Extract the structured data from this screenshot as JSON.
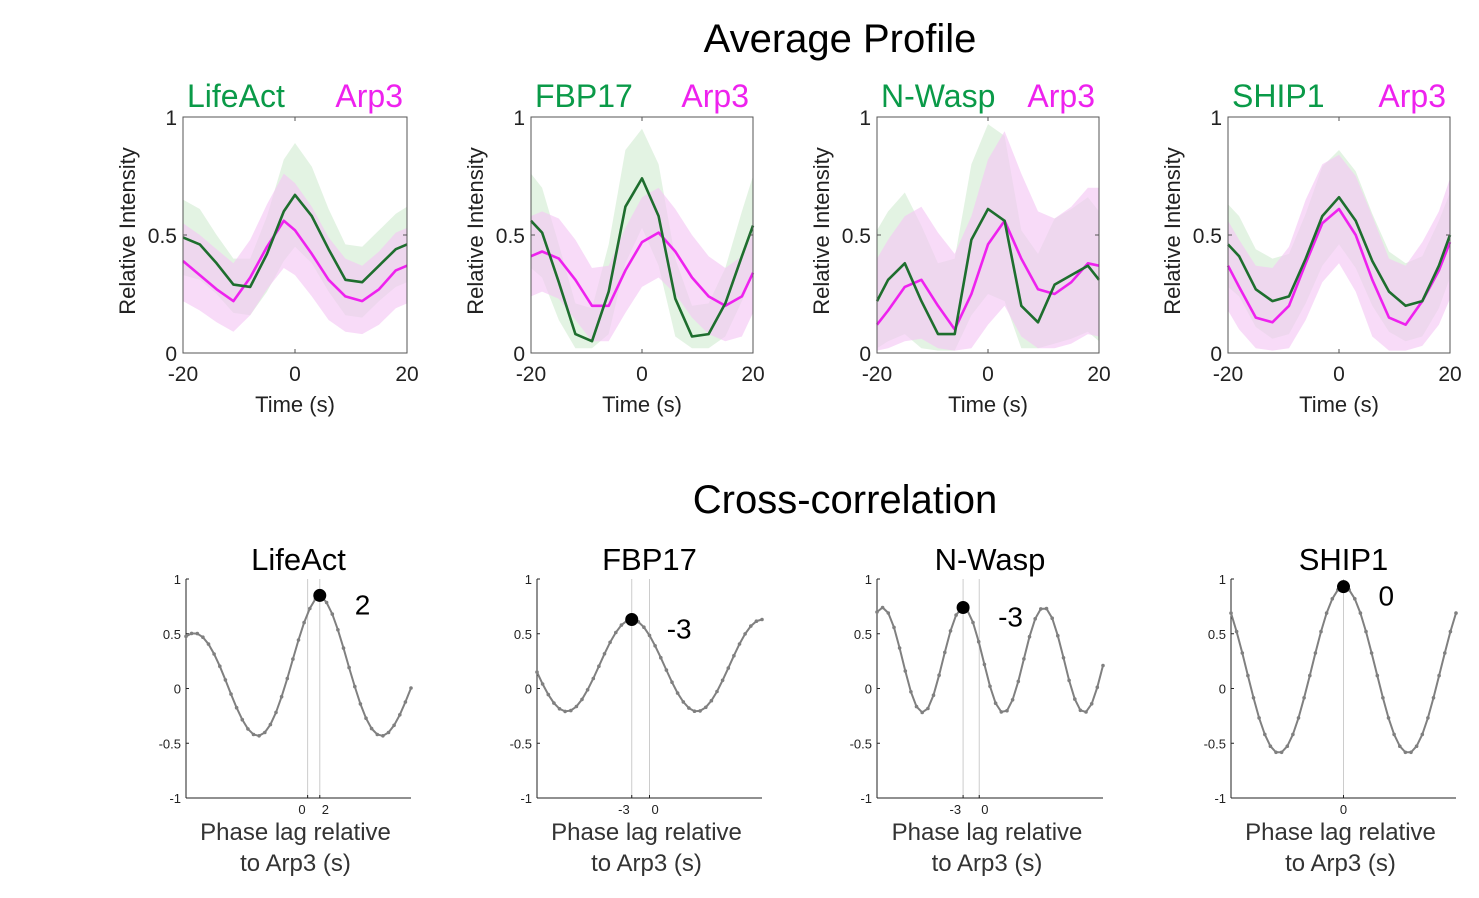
{
  "colors": {
    "green": "#1e6e2e",
    "green_label": "#0a9a48",
    "green_band": "#d4ecd4",
    "magenta": "#ee22ee",
    "magenta_band": "#f4c8f4",
    "xcorr_line": "#808080",
    "peak_dot": "#000000"
  },
  "chart_data": [
    {
      "type": "line",
      "section_title": "Average Profile",
      "legend_green": "LifeAct",
      "legend_magenta": "Arp3",
      "xlabel": "Time (s)",
      "ylabel": "Relative Intensity",
      "xlim": [
        -20,
        20
      ],
      "ylim": [
        0,
        1
      ],
      "xticks": [
        "-20",
        "0",
        "20"
      ],
      "yticks": [
        "0",
        "0.5",
        "1"
      ],
      "x": [
        -20,
        -17,
        -14,
        -11,
        -8,
        -5,
        -2,
        0,
        3,
        6,
        9,
        12,
        15,
        18,
        20
      ],
      "series": [
        {
          "name": "LifeAct",
          "color": "green",
          "values": [
            0.49,
            0.46,
            0.38,
            0.29,
            0.28,
            0.42,
            0.6,
            0.67,
            0.58,
            0.44,
            0.31,
            0.3,
            0.37,
            0.44,
            0.46
          ],
          "upper": [
            0.65,
            0.61,
            0.5,
            0.4,
            0.4,
            0.58,
            0.82,
            0.89,
            0.79,
            0.61,
            0.46,
            0.45,
            0.52,
            0.59,
            0.62
          ],
          "lower": [
            0.33,
            0.31,
            0.25,
            0.17,
            0.16,
            0.26,
            0.39,
            0.45,
            0.38,
            0.26,
            0.16,
            0.15,
            0.22,
            0.28,
            0.3
          ]
        },
        {
          "name": "Arp3",
          "color": "magenta",
          "values": [
            0.39,
            0.33,
            0.27,
            0.22,
            0.32,
            0.45,
            0.56,
            0.52,
            0.42,
            0.31,
            0.24,
            0.22,
            0.27,
            0.35,
            0.37
          ],
          "upper": [
            0.55,
            0.5,
            0.44,
            0.38,
            0.48,
            0.63,
            0.76,
            0.72,
            0.62,
            0.49,
            0.4,
            0.37,
            0.43,
            0.51,
            0.53
          ],
          "lower": [
            0.22,
            0.18,
            0.13,
            0.09,
            0.16,
            0.27,
            0.36,
            0.33,
            0.24,
            0.14,
            0.09,
            0.08,
            0.12,
            0.19,
            0.21
          ]
        }
      ]
    },
    {
      "type": "line",
      "legend_green": "FBP17",
      "legend_magenta": "Arp3",
      "xlabel": "Time (s)",
      "ylabel": "Relative Intensity",
      "xlim": [
        -20,
        20
      ],
      "ylim": [
        0,
        1
      ],
      "xticks": [
        "-20",
        "0",
        "20"
      ],
      "yticks": [
        "0",
        "0.5",
        "1"
      ],
      "x": [
        -20,
        -18,
        -15,
        -12,
        -9,
        -6,
        -3,
        0,
        3,
        6,
        9,
        12,
        15,
        18,
        20
      ],
      "series": [
        {
          "name": "FBP17",
          "color": "green",
          "values": [
            0.56,
            0.51,
            0.3,
            0.08,
            0.05,
            0.26,
            0.62,
            0.74,
            0.58,
            0.23,
            0.07,
            0.08,
            0.21,
            0.41,
            0.54
          ],
          "upper": [
            0.76,
            0.7,
            0.46,
            0.21,
            0.19,
            0.46,
            0.86,
            0.95,
            0.8,
            0.4,
            0.2,
            0.21,
            0.36,
            0.6,
            0.75
          ],
          "lower": [
            0.36,
            0.32,
            0.14,
            0.02,
            0.02,
            0.08,
            0.38,
            0.53,
            0.37,
            0.07,
            0.02,
            0.02,
            0.07,
            0.22,
            0.33
          ]
        },
        {
          "name": "Arp3",
          "color": "magenta",
          "values": [
            0.41,
            0.43,
            0.4,
            0.31,
            0.2,
            0.2,
            0.35,
            0.47,
            0.51,
            0.43,
            0.32,
            0.24,
            0.2,
            0.24,
            0.34
          ],
          "upper": [
            0.58,
            0.6,
            0.57,
            0.48,
            0.36,
            0.37,
            0.53,
            0.66,
            0.7,
            0.61,
            0.5,
            0.41,
            0.36,
            0.41,
            0.51
          ],
          "lower": [
            0.24,
            0.26,
            0.23,
            0.14,
            0.05,
            0.05,
            0.17,
            0.28,
            0.32,
            0.25,
            0.15,
            0.08,
            0.05,
            0.07,
            0.17
          ]
        }
      ]
    },
    {
      "type": "line",
      "legend_green": "N-Wasp",
      "legend_magenta": "Arp3",
      "xlabel": "Time (s)",
      "ylabel": "Relative Intensity",
      "xlim": [
        -20,
        20
      ],
      "ylim": [
        0,
        1
      ],
      "xticks": [
        "-20",
        "0",
        "20"
      ],
      "yticks": [
        "0",
        "0.5",
        "1"
      ],
      "x": [
        -20,
        -18,
        -15,
        -12,
        -9,
        -6,
        -3,
        0,
        3,
        6,
        9,
        12,
        15,
        18,
        20
      ],
      "series": [
        {
          "name": "N-Wasp",
          "color": "green",
          "values": [
            0.22,
            0.31,
            0.38,
            0.22,
            0.08,
            0.08,
            0.48,
            0.61,
            0.56,
            0.2,
            0.13,
            0.29,
            0.33,
            0.37,
            0.31
          ],
          "upper": [
            0.52,
            0.6,
            0.68,
            0.54,
            0.38,
            0.4,
            0.8,
            0.97,
            0.92,
            0.52,
            0.42,
            0.57,
            0.61,
            0.66,
            0.6
          ],
          "lower": [
            0.02,
            0.05,
            0.08,
            0.02,
            0.01,
            0.01,
            0.16,
            0.25,
            0.22,
            0.02,
            0.02,
            0.04,
            0.06,
            0.09,
            0.05
          ]
        },
        {
          "name": "Arp3",
          "color": "magenta",
          "values": [
            0.12,
            0.18,
            0.28,
            0.31,
            0.2,
            0.1,
            0.25,
            0.46,
            0.56,
            0.4,
            0.27,
            0.25,
            0.3,
            0.38,
            0.37
          ],
          "upper": [
            0.4,
            0.48,
            0.58,
            0.62,
            0.51,
            0.42,
            0.58,
            0.82,
            0.94,
            0.76,
            0.6,
            0.57,
            0.62,
            0.7,
            0.7
          ],
          "lower": [
            0.01,
            0.02,
            0.05,
            0.06,
            0.02,
            0.01,
            0.02,
            0.12,
            0.2,
            0.07,
            0.02,
            0.02,
            0.04,
            0.08,
            0.07
          ]
        }
      ]
    },
    {
      "type": "line",
      "legend_green": "SHIP1",
      "legend_magenta": "Arp3",
      "xlabel": "Time (s)",
      "ylabel": "Relative Intensity",
      "xlim": [
        -20,
        20
      ],
      "ylim": [
        0,
        1
      ],
      "xticks": [
        "-20",
        "0",
        "20"
      ],
      "yticks": [
        "0",
        "0.5",
        "1"
      ],
      "x": [
        -20,
        -18,
        -15,
        -12,
        -9,
        -6,
        -3,
        0,
        3,
        6,
        9,
        12,
        15,
        18,
        20
      ],
      "series": [
        {
          "name": "SHIP1",
          "color": "green",
          "values": [
            0.46,
            0.41,
            0.27,
            0.22,
            0.24,
            0.4,
            0.58,
            0.66,
            0.56,
            0.39,
            0.26,
            0.2,
            0.22,
            0.37,
            0.5
          ],
          "upper": [
            0.63,
            0.58,
            0.44,
            0.4,
            0.42,
            0.59,
            0.79,
            0.86,
            0.77,
            0.59,
            0.43,
            0.38,
            0.41,
            0.56,
            0.68
          ],
          "lower": [
            0.28,
            0.24,
            0.11,
            0.06,
            0.08,
            0.21,
            0.37,
            0.46,
            0.36,
            0.2,
            0.09,
            0.05,
            0.07,
            0.19,
            0.32
          ]
        },
        {
          "name": "Arp3",
          "color": "magenta",
          "values": [
            0.37,
            0.28,
            0.15,
            0.13,
            0.2,
            0.38,
            0.55,
            0.61,
            0.5,
            0.31,
            0.15,
            0.12,
            0.22,
            0.35,
            0.47
          ],
          "upper": [
            0.56,
            0.48,
            0.37,
            0.36,
            0.45,
            0.65,
            0.8,
            0.84,
            0.75,
            0.58,
            0.4,
            0.37,
            0.47,
            0.6,
            0.74
          ],
          "lower": [
            0.18,
            0.1,
            0.02,
            0.01,
            0.02,
            0.14,
            0.3,
            0.38,
            0.26,
            0.07,
            0.01,
            0.01,
            0.03,
            0.12,
            0.23
          ]
        }
      ]
    },
    {
      "type": "line",
      "section_title": "Cross-correlation",
      "title": "LifeAct",
      "xlabel": "Phase lag relative",
      "xlabel2": "to Arp3 (s)",
      "xlim": [
        -20,
        17
      ],
      "ylim": [
        -1,
        1
      ],
      "yticks": [
        "-1",
        "-0.5",
        "0",
        "0.5",
        "1"
      ],
      "xtick_values": [
        0,
        2
      ],
      "xtick_labels": [
        "0",
        "2"
      ],
      "peak_lag": 2,
      "peak_value": 0.85,
      "peak_label": "2",
      "curve": {
        "amplitude": 0.74,
        "offset": 0.11,
        "period": 21,
        "center": 2,
        "damp": 0.03
      }
    },
    {
      "type": "line",
      "title": "FBP17",
      "xlabel": "Phase lag relative",
      "xlabel2": "to Arp3 (s)",
      "xlim": [
        -19,
        19
      ],
      "ylim": [
        -1,
        1
      ],
      "yticks": [
        "-1",
        "-0.5",
        "0",
        "0.5",
        "1"
      ],
      "xtick_values": [
        -3,
        0
      ],
      "xtick_labels": [
        "-3",
        "0"
      ],
      "peak_lag": -3,
      "peak_value": 0.63,
      "peak_label": "-3",
      "curve": {
        "amplitude": 0.42,
        "offset": 0.21,
        "period": 22,
        "center": -3,
        "damp": 0.0
      }
    },
    {
      "type": "line",
      "title": "N-Wasp",
      "xlabel": "Phase lag relative",
      "xlabel2": "to Arp3 (s)",
      "xlim": [
        -19,
        23
      ],
      "ylim": [
        -1,
        1
      ],
      "yticks": [
        "-1",
        "-0.5",
        "0",
        "0.5",
        "1"
      ],
      "xtick_values": [
        -3,
        0
      ],
      "xtick_labels": [
        "-3",
        "0"
      ],
      "peak_lag": -3,
      "peak_value": 0.74,
      "peak_label": "-3",
      "curve": {
        "amplitude": 0.48,
        "offset": 0.26,
        "period": 15,
        "center": -3,
        "damp": 0.0
      }
    },
    {
      "type": "line",
      "title": "SHIP1",
      "xlabel": "Phase lag relative",
      "xlabel2": "to Arp3 (s)",
      "xlim": [
        -20,
        20
      ],
      "ylim": [
        -1,
        1
      ],
      "yticks": [
        "-1",
        "-0.5",
        "0",
        "0.5",
        "1"
      ],
      "xtick_values": [
        0
      ],
      "xtick_labels": [
        "0"
      ],
      "peak_lag": 0,
      "peak_value": 0.93,
      "peak_label": "0",
      "curve": {
        "amplitude": 0.76,
        "offset": 0.17,
        "period": 23,
        "center": 0,
        "damp": 0.0
      }
    }
  ]
}
